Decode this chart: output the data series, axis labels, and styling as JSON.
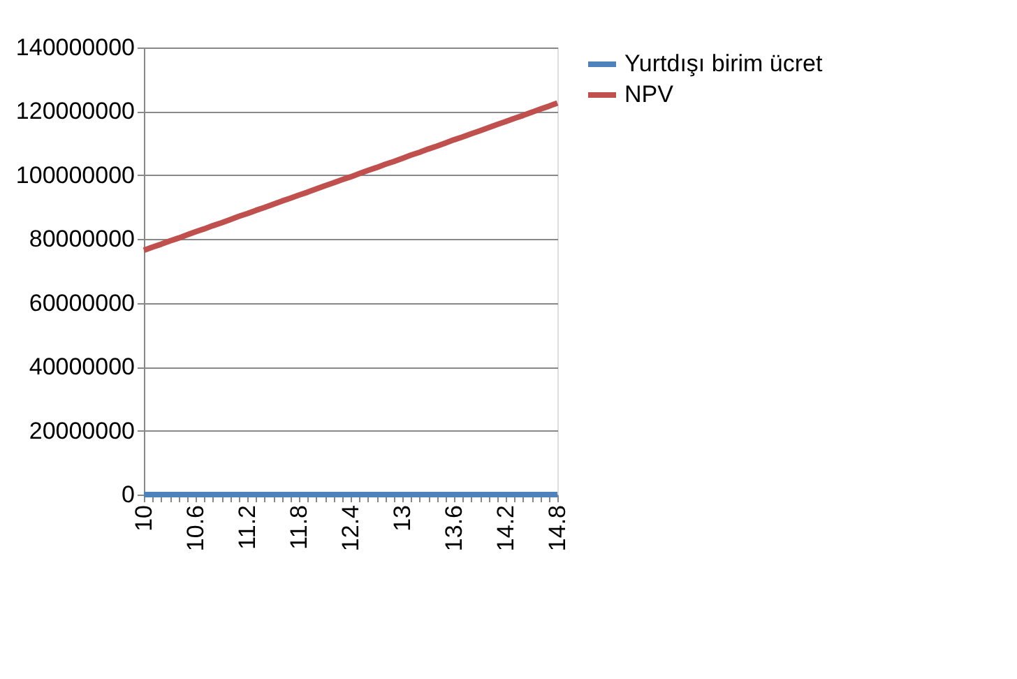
{
  "chart_data": {
    "type": "line",
    "categories": [
      "10",
      null,
      null,
      null,
      null,
      null,
      "10.6",
      null,
      null,
      null,
      null,
      null,
      "11.2",
      null,
      null,
      null,
      null,
      null,
      "11.8",
      null,
      null,
      null,
      null,
      null,
      "12.4",
      null,
      null,
      null,
      null,
      null,
      "13",
      null,
      null,
      null,
      null,
      null,
      "13.6",
      null,
      null,
      null,
      null,
      null,
      "14.2",
      null,
      null,
      null,
      null,
      null,
      "14.8"
    ],
    "series": [
      {
        "name": "Yurtdışı birim ücret",
        "color": "#4f81bd",
        "values": [
          0,
          0,
          0,
          0,
          0,
          0,
          0,
          0,
          0,
          0,
          0,
          0,
          0,
          0,
          0,
          0,
          0,
          0,
          0,
          0,
          0,
          0,
          0,
          0,
          0,
          0,
          0,
          0,
          0,
          0,
          0,
          0,
          0,
          0,
          0,
          0,
          0,
          0,
          0,
          0,
          0,
          0,
          0,
          0,
          0,
          0,
          0,
          0,
          0
        ]
      },
      {
        "name": "NPV",
        "color": "#c0504d",
        "values": [
          76500000,
          77500000,
          78400000,
          79400000,
          80300000,
          81300000,
          82300000,
          83200000,
          84200000,
          85100000,
          86100000,
          87100000,
          88000000,
          89000000,
          89900000,
          90900000,
          91900000,
          92800000,
          93800000,
          94700000,
          95700000,
          96700000,
          97600000,
          98600000,
          99500000,
          100500000,
          101500000,
          102400000,
          103400000,
          104300000,
          105300000,
          106300000,
          107200000,
          108200000,
          109100000,
          110100000,
          111100000,
          112000000,
          113000000,
          113900000,
          114900000,
          115900000,
          116800000,
          117800000,
          118700000,
          119700000,
          120700000,
          121600000,
          122600000
        ]
      }
    ],
    "ylim": [
      0,
      140000000
    ],
    "yticks": [
      0,
      20000000,
      40000000,
      60000000,
      80000000,
      100000000,
      120000000,
      140000000
    ],
    "grid": "y",
    "legend": "right",
    "marker": "none",
    "line_style": "solid"
  }
}
